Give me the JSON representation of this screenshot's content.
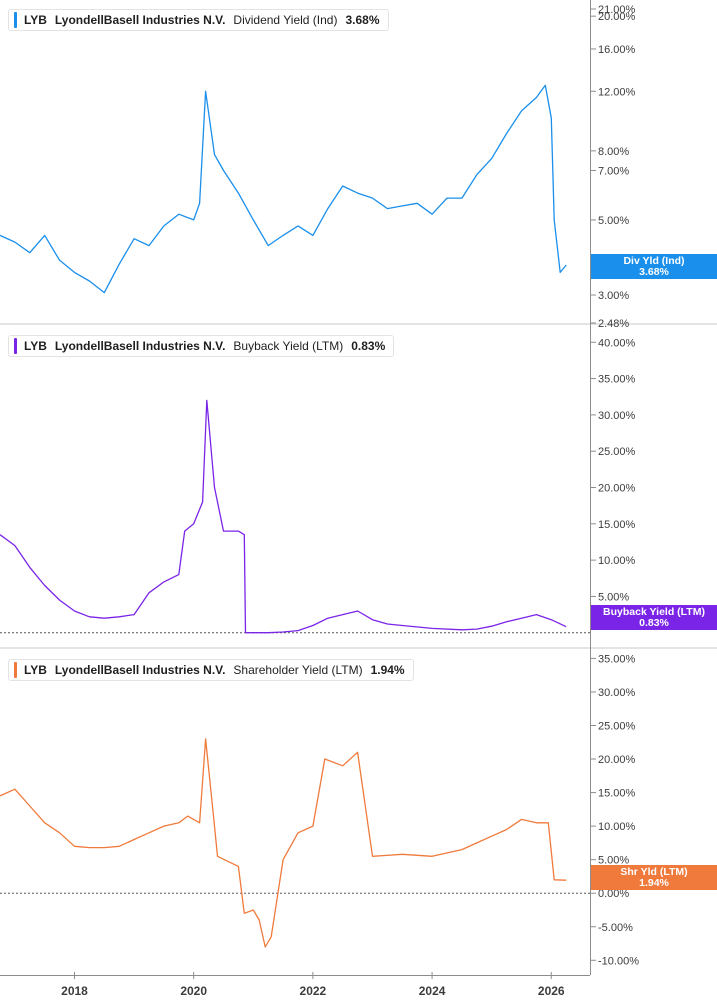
{
  "ticker": "LYB",
  "company": "LyondellBasell Industries N.V.",
  "x_axis": {
    "ticks": [
      "2018",
      "2020",
      "2022",
      "2024",
      "2026"
    ]
  },
  "panels": [
    {
      "metric": "Dividend Yield (Ind)",
      "value": "3.68%",
      "color": "#1a8fec",
      "tag_label": "Div Yld (Ind)",
      "tag_value": "3.68%"
    },
    {
      "metric": "Buyback Yield (LTM)",
      "value": "0.83%",
      "color": "#7a24e8",
      "tag_label": "Buyback Yield (LTM)",
      "tag_value": "0.83%"
    },
    {
      "metric": "Shareholder Yield (LTM)",
      "value": "1.94%",
      "color": "#f07a3c",
      "tag_label": "Shr Yld (LTM)",
      "tag_value": "1.94%"
    }
  ],
  "chart_data": [
    {
      "type": "line",
      "title": "LYB LyondellBasell Industries N.V. Dividend Yield (Ind) 3.68%",
      "scale": "log",
      "ylim": [
        2.48,
        21.0
      ],
      "y_ticks": [
        "21.00%",
        "20.00%",
        "16.00%",
        "12.00%",
        "8.00%",
        "7.00%",
        "5.00%",
        "3.00%",
        "2.48%"
      ],
      "y_tick_values": [
        21,
        20,
        16,
        12,
        8,
        7,
        5,
        3,
        2.48
      ],
      "x": [
        2016.75,
        2017.0,
        2017.25,
        2017.5,
        2017.75,
        2018.0,
        2018.25,
        2018.5,
        2018.75,
        2019.0,
        2019.25,
        2019.5,
        2019.75,
        2020.0,
        2020.1,
        2020.2,
        2020.35,
        2020.5,
        2020.75,
        2021.0,
        2021.25,
        2021.5,
        2021.75,
        2022.0,
        2022.25,
        2022.5,
        2022.75,
        2023.0,
        2023.25,
        2023.5,
        2023.75,
        2024.0,
        2024.25,
        2024.5,
        2024.75,
        2025.0,
        2025.25,
        2025.5,
        2025.75,
        2025.9,
        2026.0,
        2026.05,
        2026.15,
        2026.25
      ],
      "values": [
        4.5,
        4.3,
        4.0,
        4.5,
        3.8,
        3.5,
        3.3,
        3.05,
        3.7,
        4.4,
        4.2,
        4.8,
        5.2,
        5.0,
        5.6,
        12.0,
        7.8,
        7.0,
        6.0,
        5.0,
        4.2,
        4.5,
        4.8,
        4.5,
        5.4,
        6.3,
        6.0,
        5.8,
        5.4,
        5.5,
        5.6,
        5.2,
        5.8,
        5.8,
        6.8,
        7.6,
        9.0,
        10.5,
        11.5,
        12.5,
        10.0,
        5.0,
        3.5,
        3.68
      ]
    },
    {
      "type": "line",
      "title": "LYB LyondellBasell Industries N.V. Buyback Yield (LTM) 0.83%",
      "ylim": [
        -1,
        41
      ],
      "y_ticks": [
        "40.00%",
        "35.00%",
        "30.00%",
        "25.00%",
        "20.00%",
        "15.00%",
        "10.00%",
        "5.00%"
      ],
      "y_tick_values": [
        40,
        35,
        30,
        25,
        20,
        15,
        10,
        5
      ],
      "x": [
        2016.75,
        2017.0,
        2017.25,
        2017.5,
        2017.75,
        2018.0,
        2018.25,
        2018.5,
        2018.75,
        2019.0,
        2019.25,
        2019.5,
        2019.75,
        2019.85,
        2020.0,
        2020.15,
        2020.22,
        2020.35,
        2020.5,
        2020.75,
        2020.85,
        2020.87,
        2021.25,
        2021.5,
        2021.75,
        2022.0,
        2022.25,
        2022.5,
        2022.75,
        2023.0,
        2023.25,
        2023.5,
        2024.0,
        2024.5,
        2024.75,
        2025.0,
        2025.25,
        2025.5,
        2025.75,
        2026.0,
        2026.25
      ],
      "values": [
        13.5,
        12.0,
        9.0,
        6.5,
        4.5,
        3.0,
        2.2,
        2.0,
        2.2,
        2.5,
        5.5,
        7.0,
        8.0,
        14.0,
        15.0,
        18.0,
        32.0,
        20.0,
        14.0,
        14.0,
        13.5,
        0.0,
        0.0,
        0.1,
        0.3,
        1.0,
        2.0,
        2.5,
        3.0,
        1.8,
        1.2,
        1.0,
        0.6,
        0.4,
        0.5,
        0.9,
        1.5,
        2.0,
        2.5,
        1.8,
        0.83
      ]
    },
    {
      "type": "line",
      "title": "LYB LyondellBasell Industries N.V. Shareholder Yield (LTM) 1.94%",
      "ylim": [
        -11,
        37
      ],
      "y_ticks": [
        "35.00%",
        "30.00%",
        "25.00%",
        "20.00%",
        "15.00%",
        "10.00%",
        "5.00%",
        "0.00%",
        "-5.00%",
        "-10.00%"
      ],
      "y_tick_values": [
        35,
        30,
        25,
        20,
        15,
        10,
        5,
        0,
        -5,
        -10
      ],
      "x": [
        2016.75,
        2017.0,
        2017.25,
        2017.5,
        2017.75,
        2018.0,
        2018.25,
        2018.5,
        2018.75,
        2019.0,
        2019.25,
        2019.5,
        2019.75,
        2019.9,
        2020.1,
        2020.2,
        2020.35,
        2020.4,
        2020.75,
        2020.85,
        2021.0,
        2021.1,
        2021.2,
        2021.3,
        2021.5,
        2021.75,
        2022.0,
        2022.2,
        2022.5,
        2022.75,
        2023.0,
        2023.5,
        2024.0,
        2024.5,
        2024.75,
        2025.0,
        2025.25,
        2025.5,
        2025.75,
        2025.95,
        2026.05,
        2026.25
      ],
      "values": [
        14.5,
        15.5,
        13.0,
        10.5,
        9.0,
        7.0,
        6.8,
        6.8,
        7.0,
        8.0,
        9.0,
        10.0,
        10.5,
        11.5,
        10.5,
        23.0,
        10.0,
        5.5,
        4.0,
        -3.0,
        -2.5,
        -4.0,
        -8.0,
        -6.5,
        5.0,
        9.0,
        10.0,
        20.0,
        19.0,
        21.0,
        5.5,
        5.8,
        5.5,
        6.5,
        7.5,
        8.5,
        9.5,
        11.0,
        10.5,
        10.5,
        2.0,
        1.94
      ]
    }
  ]
}
